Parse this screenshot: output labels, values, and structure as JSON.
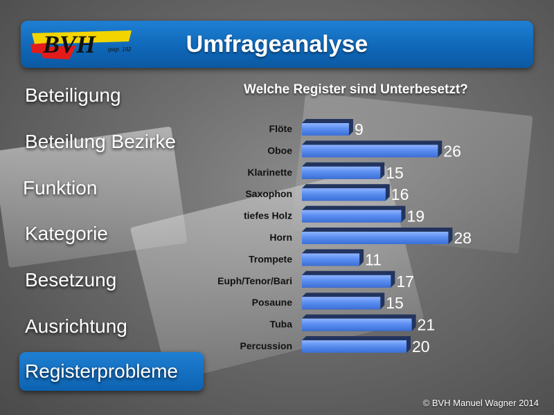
{
  "header": {
    "title": "Umfrageanalyse",
    "logo_text": "BVH",
    "logo_subtext": "gegr. 1920"
  },
  "nav": {
    "items": [
      {
        "label": "Beteiligung",
        "active": false
      },
      {
        "label": "Beteilung Bezirke",
        "active": false
      },
      {
        "label": "Funktion",
        "active": false
      },
      {
        "label": "Kategorie",
        "active": false
      },
      {
        "label": "Besetzung",
        "active": false
      },
      {
        "label": "Ausrichtung",
        "active": false
      },
      {
        "label": "Registerprobleme",
        "active": true
      }
    ]
  },
  "chart_data": {
    "type": "bar",
    "orientation": "horizontal",
    "title": "Welche Register sind Unterbesetzt?",
    "categories": [
      "Flöte",
      "Oboe",
      "Klarinette",
      "Saxophon",
      "tiefes Holz",
      "Horn",
      "Trompete",
      "Euph/Tenor/Bari",
      "Posaune",
      "Tuba",
      "Percussion"
    ],
    "values": [
      9,
      26,
      15,
      16,
      19,
      28,
      11,
      17,
      15,
      21,
      20
    ],
    "xlim": [
      0,
      28
    ],
    "grid": false,
    "legend": "none",
    "bar_color": "#5b8ef0"
  },
  "footer": {
    "copyright": "© BVH Manuel Wagner 2014"
  }
}
